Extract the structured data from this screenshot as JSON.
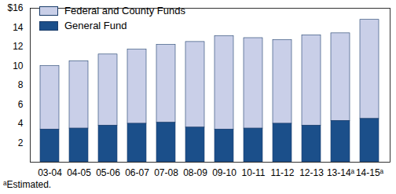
{
  "chart_data": {
    "type": "bar",
    "stacked": true,
    "legend": "top-left",
    "categories": [
      "03-04",
      "04-05",
      "05-06",
      "06-07",
      "07-08",
      "08-09",
      "09-10",
      "10-11",
      "11-12",
      "12-13",
      "13-14ᵃ",
      "14-15ᵃ"
    ],
    "series": [
      {
        "name": "Federal and County Funds",
        "color": "#c9cfe8",
        "values": [
          6.6,
          7.0,
          7.4,
          7.7,
          8.1,
          8.9,
          9.7,
          9.4,
          8.7,
          9.4,
          9.1,
          10.3
        ]
      },
      {
        "name": "General Fund",
        "color": "#1b4f8a",
        "values": [
          3.4,
          3.5,
          3.8,
          4.0,
          4.1,
          3.6,
          3.4,
          3.5,
          4.0,
          3.8,
          4.3,
          4.5
        ]
      }
    ],
    "ylim": [
      0,
      16
    ],
    "yticks": [
      2,
      4,
      6,
      8,
      10,
      12,
      14,
      {
        "value": 16,
        "label": "$16"
      }
    ],
    "annotations": [
      "ᵃEstimated."
    ]
  }
}
